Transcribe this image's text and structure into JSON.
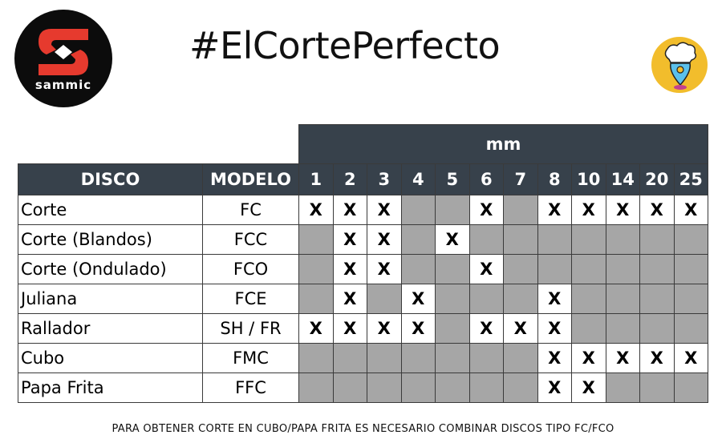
{
  "logo": {
    "brand": "sammic",
    "accent": "#e63a2e"
  },
  "title": "#ElCortePerfecto",
  "badge_icon": "chef-hat-location-pin-icon",
  "table": {
    "unit_header": "mm",
    "col_disco": "DISCO",
    "col_modelo": "MODELO",
    "sizes": [
      "1",
      "2",
      "3",
      "4",
      "5",
      "6",
      "7",
      "8",
      "10",
      "14",
      "20",
      "25"
    ],
    "rows": [
      {
        "disco": "Corte",
        "modelo": "FC",
        "cells": [
          "X",
          "X",
          "X",
          "-",
          "-",
          "X",
          "-",
          "X",
          "X",
          "X",
          "X",
          "X"
        ]
      },
      {
        "disco": "Corte (Blandos)",
        "modelo": "FCC",
        "cells": [
          "-",
          "X",
          "X",
          "-",
          "X",
          "-",
          "-",
          "-",
          "-",
          "-",
          "-",
          "-"
        ]
      },
      {
        "disco": "Corte (Ondulado)",
        "modelo": "FCO",
        "cells": [
          "-",
          "X",
          "X",
          "-",
          "-",
          "X",
          "-",
          "-",
          "-",
          "-",
          "-",
          "-"
        ]
      },
      {
        "disco": "Juliana",
        "modelo": "FCE",
        "cells": [
          "-",
          "X",
          "-",
          "X",
          "-",
          "-",
          "-",
          "X",
          "-",
          "-",
          "-",
          "-"
        ]
      },
      {
        "disco": "Rallador",
        "modelo": "SH / FR",
        "cells": [
          "X",
          "X",
          "X",
          "X",
          "-",
          "X",
          "X",
          "X",
          "-",
          "-",
          "-",
          "-"
        ]
      },
      {
        "disco": "Cubo",
        "modelo": "FMC",
        "cells": [
          "-",
          "-",
          "-",
          "-",
          "-",
          "-",
          "-",
          "X",
          "X",
          "X",
          "X",
          "X"
        ]
      },
      {
        "disco": "Papa Frita",
        "modelo": "FFC",
        "cells": [
          "-",
          "-",
          "-",
          "-",
          "-",
          "-",
          "-",
          "X",
          "X",
          "-",
          "-",
          "-"
        ]
      }
    ],
    "colors": {
      "header": "#37414b",
      "unavailable": "#a6a6a6"
    }
  },
  "footnote": "PARA OBTENER CORTE EN CUBO/PAPA FRITA ES NECESARIO COMBINAR DISCOS TIPO FC/FCO"
}
